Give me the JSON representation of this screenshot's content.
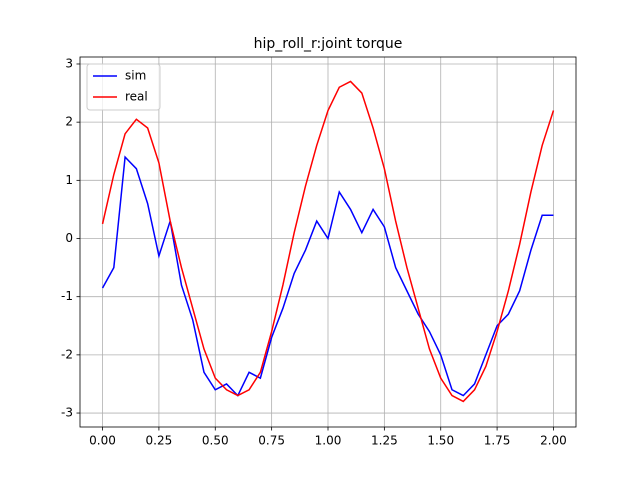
{
  "chart_data": {
    "type": "line",
    "title": "hip_roll_r:joint torque",
    "x": [
      0,
      0.05,
      0.1,
      0.15,
      0.2,
      0.25,
      0.3,
      0.35,
      0.4,
      0.45,
      0.5,
      0.55,
      0.6,
      0.65,
      0.7,
      0.75,
      0.8,
      0.85,
      0.9,
      0.95,
      1.0,
      1.05,
      1.1,
      1.15,
      1.2,
      1.25,
      1.3,
      1.35,
      1.4,
      1.45,
      1.5,
      1.55,
      1.6,
      1.65,
      1.7,
      1.75,
      1.8,
      1.85,
      1.9,
      1.95,
      2.0
    ],
    "series": [
      {
        "name": "sim",
        "color": "#0000ff",
        "values": [
          -0.85,
          -0.5,
          1.4,
          1.2,
          0.6,
          -0.3,
          0.3,
          -0.8,
          -1.4,
          -2.3,
          -2.6,
          -2.5,
          -2.7,
          -2.3,
          -2.4,
          -1.7,
          -1.2,
          -0.6,
          -0.2,
          0.3,
          0.0,
          0.8,
          0.5,
          0.1,
          0.5,
          0.2,
          -0.5,
          -0.9,
          -1.3,
          -1.6,
          -2.0,
          -2.6,
          -2.7,
          -2.5,
          -2.0,
          -1.5,
          -1.3,
          -0.9,
          -0.2,
          0.4,
          0.4
        ]
      },
      {
        "name": "real",
        "color": "#ff0000",
        "values": [
          0.25,
          1.1,
          1.8,
          2.05,
          1.9,
          1.3,
          0.3,
          -0.5,
          -1.2,
          -1.9,
          -2.4,
          -2.6,
          -2.7,
          -2.6,
          -2.3,
          -1.6,
          -0.8,
          0.1,
          0.9,
          1.6,
          2.2,
          2.6,
          2.7,
          2.5,
          1.9,
          1.2,
          0.3,
          -0.5,
          -1.2,
          -1.9,
          -2.4,
          -2.7,
          -2.8,
          -2.6,
          -2.2,
          -1.6,
          -0.9,
          -0.1,
          0.8,
          1.6,
          2.2
        ]
      }
    ],
    "xlim": [
      -0.1,
      2.1
    ],
    "ylim": [
      -3.24,
      3.12
    ],
    "xticks": [
      {
        "value": 0,
        "label": "0.00"
      },
      {
        "value": 0.25,
        "label": "0.25"
      },
      {
        "value": 0.5,
        "label": "0.50"
      },
      {
        "value": 0.75,
        "label": "0.75"
      },
      {
        "value": 1.0,
        "label": "1.00"
      },
      {
        "value": 1.25,
        "label": "1.25"
      },
      {
        "value": 1.5,
        "label": "1.50"
      },
      {
        "value": 1.75,
        "label": "1.75"
      },
      {
        "value": 2.0,
        "label": "2.00"
      }
    ],
    "yticks": [
      -3,
      -2,
      -1,
      0,
      1,
      2,
      3
    ],
    "grid": true,
    "legend": "upper-left"
  }
}
